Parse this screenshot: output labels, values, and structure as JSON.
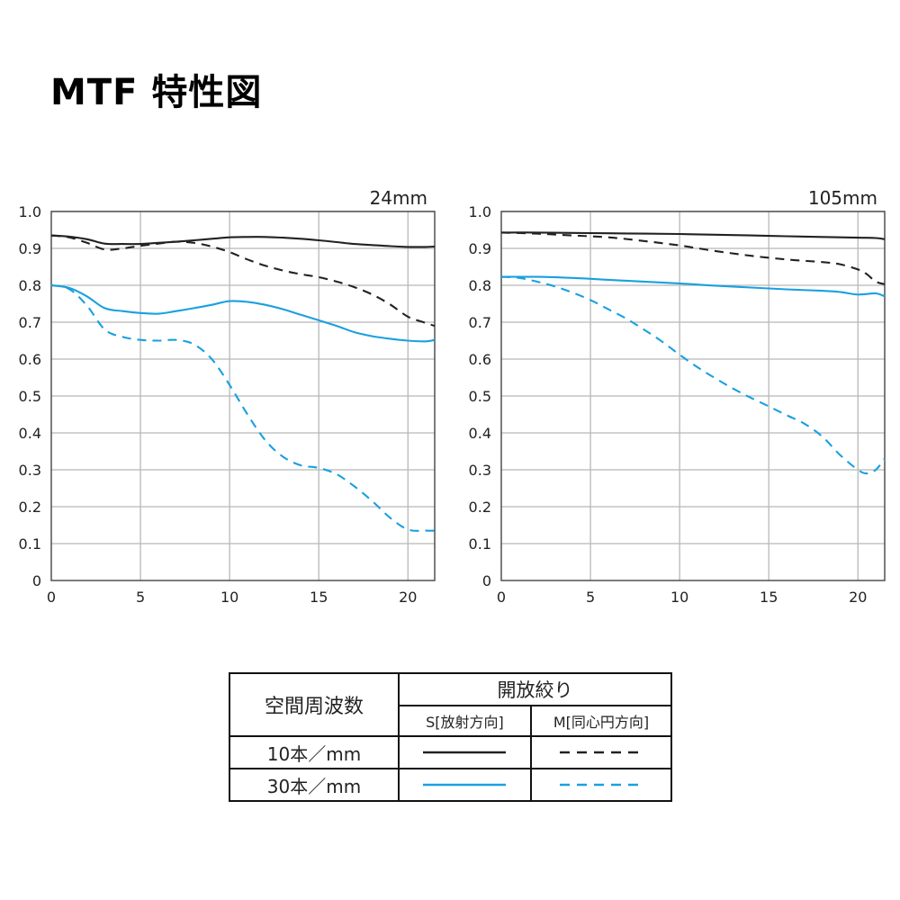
{
  "page": {
    "title": "MTF 特性図"
  },
  "colors": {
    "black": "#222222",
    "blue": "#1aa0e0",
    "grid": "#b8b8b8",
    "axis": "#444444"
  },
  "chart_data": [
    {
      "type": "line",
      "title": "24mm",
      "xlim": [
        0,
        21.5
      ],
      "ylim": [
        0,
        1.0
      ],
      "xticks": [
        0,
        5,
        10,
        15,
        20
      ],
      "xtick_labels": [
        "0",
        "5",
        "10",
        "15",
        "20"
      ],
      "yticks": [
        0,
        0.1,
        0.2,
        0.3,
        0.4,
        0.5,
        0.6,
        0.7,
        0.8,
        0.9,
        1.0
      ],
      "ytick_labels": [
        "0",
        "0.1",
        "0.2",
        "0.3",
        "0.4",
        "0.5",
        "0.6",
        "0.7",
        "0.8",
        "0.9",
        "1.0"
      ],
      "grid": true,
      "series": [
        {
          "color": "black",
          "dashed": false,
          "x": [
            0,
            1,
            2,
            3,
            4,
            5,
            6,
            7,
            8,
            9,
            10,
            11,
            12,
            13,
            14,
            15,
            16,
            17,
            18,
            19,
            20,
            21,
            21.5
          ],
          "y": [
            0.935,
            0.932,
            0.925,
            0.913,
            0.912,
            0.912,
            0.915,
            0.918,
            0.922,
            0.926,
            0.93,
            0.931,
            0.931,
            0.929,
            0.926,
            0.922,
            0.917,
            0.912,
            0.909,
            0.906,
            0.904,
            0.904,
            0.905
          ]
        },
        {
          "color": "black",
          "dashed": true,
          "x": [
            0,
            1,
            2,
            3,
            4,
            5,
            6,
            7,
            8,
            9,
            10,
            11,
            12,
            13,
            14,
            15,
            16,
            17,
            18,
            19,
            20,
            21,
            21.5
          ],
          "y": [
            0.935,
            0.93,
            0.915,
            0.897,
            0.9,
            0.907,
            0.913,
            0.918,
            0.915,
            0.905,
            0.89,
            0.87,
            0.853,
            0.84,
            0.83,
            0.822,
            0.81,
            0.795,
            0.775,
            0.748,
            0.715,
            0.698,
            0.69
          ]
        },
        {
          "color": "blue",
          "dashed": false,
          "x": [
            0,
            1,
            2,
            3,
            4,
            5,
            6,
            7,
            8,
            9,
            10,
            11,
            12,
            13,
            14,
            15,
            16,
            17,
            18,
            19,
            20,
            21,
            21.5
          ],
          "y": [
            0.8,
            0.793,
            0.77,
            0.738,
            0.73,
            0.725,
            0.723,
            0.73,
            0.738,
            0.747,
            0.757,
            0.755,
            0.747,
            0.735,
            0.72,
            0.705,
            0.69,
            0.673,
            0.662,
            0.655,
            0.65,
            0.648,
            0.652
          ]
        },
        {
          "color": "blue",
          "dashed": true,
          "x": [
            0,
            1,
            2,
            3,
            4,
            5,
            6,
            7,
            8,
            9,
            10,
            11,
            12,
            13,
            14,
            15,
            16,
            17,
            18,
            19,
            20,
            21,
            21.5
          ],
          "y": [
            0.8,
            0.79,
            0.745,
            0.68,
            0.66,
            0.652,
            0.65,
            0.652,
            0.64,
            0.6,
            0.53,
            0.45,
            0.38,
            0.335,
            0.312,
            0.305,
            0.288,
            0.255,
            0.215,
            0.17,
            0.138,
            0.135,
            0.135
          ]
        }
      ]
    },
    {
      "type": "line",
      "title": "105mm",
      "xlim": [
        0,
        21.5
      ],
      "ylim": [
        0,
        1.0
      ],
      "xticks": [
        0,
        5,
        10,
        15,
        20
      ],
      "xtick_labels": [
        "0",
        "5",
        "10",
        "15",
        "20"
      ],
      "yticks": [
        0,
        0.1,
        0.2,
        0.3,
        0.4,
        0.5,
        0.6,
        0.7,
        0.8,
        0.9,
        1.0
      ],
      "ytick_labels": [
        "0",
        "0.1",
        "0.2",
        "0.3",
        "0.4",
        "0.5",
        "0.6",
        "0.7",
        "0.8",
        "0.9",
        "1.0"
      ],
      "grid": true,
      "series": [
        {
          "color": "black",
          "dashed": false,
          "x": [
            0,
            2,
            4,
            6,
            8,
            10,
            12,
            14,
            16,
            18,
            20,
            21,
            21.5
          ],
          "y": [
            0.943,
            0.943,
            0.942,
            0.941,
            0.94,
            0.939,
            0.937,
            0.935,
            0.933,
            0.931,
            0.929,
            0.928,
            0.925
          ]
        },
        {
          "color": "black",
          "dashed": true,
          "x": [
            0,
            2,
            4,
            6,
            8,
            10,
            12,
            14,
            16,
            18,
            19,
            20,
            20.5,
            21,
            21.5
          ],
          "y": [
            0.943,
            0.94,
            0.935,
            0.93,
            0.92,
            0.908,
            0.893,
            0.88,
            0.87,
            0.863,
            0.857,
            0.843,
            0.83,
            0.81,
            0.803
          ]
        },
        {
          "color": "blue",
          "dashed": false,
          "x": [
            0,
            2,
            4,
            6,
            8,
            10,
            12,
            14,
            16,
            18,
            19,
            20,
            21,
            21.5
          ],
          "y": [
            0.823,
            0.823,
            0.82,
            0.815,
            0.81,
            0.805,
            0.799,
            0.794,
            0.789,
            0.785,
            0.782,
            0.775,
            0.778,
            0.77
          ]
        },
        {
          "color": "blue",
          "dashed": true,
          "x": [
            0,
            1,
            2,
            3,
            4,
            5,
            6,
            7,
            8,
            9,
            10,
            11,
            12,
            13,
            14,
            15,
            16,
            17,
            18,
            19,
            20,
            20.5,
            21,
            21.5
          ],
          "y": [
            0.823,
            0.82,
            0.81,
            0.797,
            0.78,
            0.76,
            0.735,
            0.71,
            0.68,
            0.648,
            0.612,
            0.578,
            0.548,
            0.52,
            0.495,
            0.472,
            0.448,
            0.425,
            0.39,
            0.34,
            0.3,
            0.29,
            0.3,
            0.33
          ]
        }
      ]
    }
  ],
  "legend_table": {
    "col_header": "空間周波数",
    "group_header": "開放絞り",
    "sub_headers": [
      "S[放射方向]",
      "M[同心円方向]"
    ],
    "rows": [
      {
        "label": "10本／mm",
        "color": "black"
      },
      {
        "label": "30本／mm",
        "color": "blue"
      }
    ]
  }
}
